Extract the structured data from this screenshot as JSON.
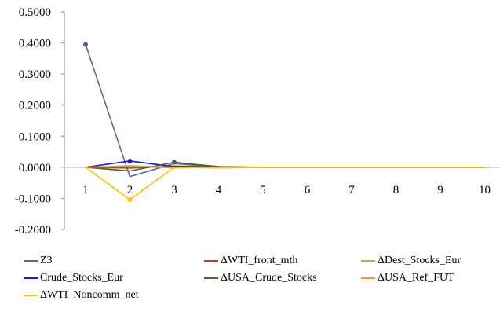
{
  "chart_data": {
    "type": "line",
    "title": "",
    "xlabel": "",
    "ylabel": "",
    "categories": [
      "1",
      "2",
      "3",
      "4",
      "5",
      "6",
      "7",
      "8",
      "9",
      "10"
    ],
    "ylim": [
      -0.2,
      0.5
    ],
    "yticks": [
      "0.5000",
      "0.4000",
      "0.3000",
      "0.2000",
      "0.1000",
      "0.0000",
      "-0.1000",
      "-0.2000"
    ],
    "grid": false,
    "legend_position": "bottom",
    "series": [
      {
        "name": "Z3",
        "color": "#4a72a8",
        "values": [
          0.395,
          -0.03,
          0.012,
          0.0,
          0.0,
          0.0,
          0.0,
          0.0,
          0.0,
          0.0
        ],
        "marker_index": 0,
        "marker_color": "#5b5b9a"
      },
      {
        "name": "ΔWTI_front_mth",
        "color": "#c0392b",
        "values": [
          0.0,
          -0.003,
          0.004,
          0.0,
          0.0,
          0.0,
          0.0,
          0.0,
          0.0,
          0.0
        ]
      },
      {
        "name": "ΔDest_Stocks_Eur",
        "color": "#9bbb59",
        "values": [
          0.0,
          0.003,
          -0.002,
          0.0,
          0.0,
          0.0,
          0.0,
          0.0,
          0.0,
          0.0
        ]
      },
      {
        "name": "Crude_Stocks_Eur",
        "color": "#1a1adb",
        "values": [
          0.0,
          0.02,
          0.002,
          0.0,
          0.0,
          0.0,
          0.0,
          0.0,
          0.0,
          0.0
        ],
        "marker_index": 1,
        "marker_color": "#1a1adb"
      },
      {
        "name": "ΔUSA_Crude_Stocks",
        "color": "#4f6228",
        "values": [
          0.0,
          -0.012,
          0.016,
          0.002,
          0.0,
          0.0,
          0.0,
          0.0,
          0.0,
          0.0
        ],
        "marker_index": 2,
        "marker_color": "#4d5a4a"
      },
      {
        "name": "ΔUSA_Ref_FUT",
        "color": "#f79646",
        "values": [
          0.0,
          0.005,
          0.0,
          -0.002,
          0.0,
          0.0,
          0.0,
          0.0,
          0.0,
          0.0
        ]
      },
      {
        "name": "ΔWTI_Noncomm_net",
        "color": "#ffc000",
        "values": [
          0.0,
          -0.104,
          0.0,
          0.0,
          0.0,
          0.0,
          0.0,
          0.0,
          0.0,
          0.0
        ],
        "marker_index": 1,
        "marker_color": "#ffc000"
      }
    ]
  }
}
